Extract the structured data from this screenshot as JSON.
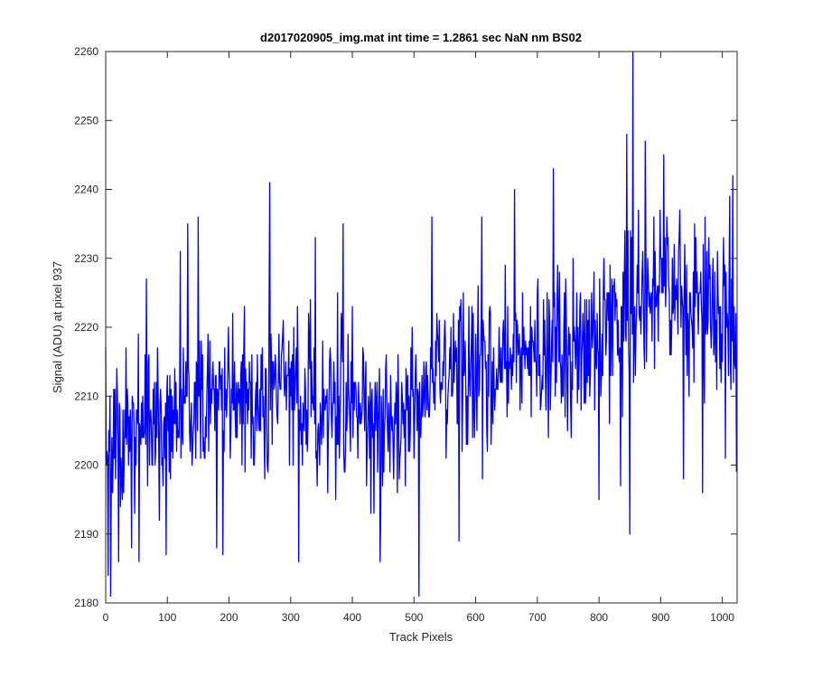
{
  "chart_data": {
    "type": "line",
    "title": "d2017020905_img.mat int time = 1.2861 sec  NaN nm BS02",
    "xlabel": "Track Pixels",
    "ylabel": "Signal (ADU) at pixel 937",
    "xlim": [
      0,
      1024
    ],
    "ylim": [
      2180,
      2260
    ],
    "xticks": [
      0,
      100,
      200,
      300,
      400,
      500,
      600,
      700,
      800,
      900,
      1000
    ],
    "yticks": [
      2180,
      2190,
      2200,
      2210,
      2220,
      2230,
      2240,
      2250,
      2260
    ],
    "grid": false,
    "line_color": "#0000ff",
    "series": [
      {
        "trend_x": [
          0,
          100,
          200,
          300,
          400,
          450,
          500,
          600,
          700,
          800,
          850,
          900,
          1000,
          1023
        ],
        "trend_mean": [
          2203,
          2207,
          2210,
          2211,
          2209,
          2205,
          2209,
          2214,
          2216,
          2219,
          2224,
          2225,
          2223,
          2219
        ],
        "trend_amplitude": 6.5,
        "peaks": [
          {
            "x": 0,
            "y": 2217
          },
          {
            "x": 4,
            "y": 2184
          },
          {
            "x": 8,
            "y": 2181
          },
          {
            "x": 18,
            "y": 2214
          },
          {
            "x": 21,
            "y": 2186
          },
          {
            "x": 33,
            "y": 2217
          },
          {
            "x": 42,
            "y": 2188
          },
          {
            "x": 54,
            "y": 2186
          },
          {
            "x": 66,
            "y": 2227
          },
          {
            "x": 98,
            "y": 2187
          },
          {
            "x": 121,
            "y": 2231
          },
          {
            "x": 133,
            "y": 2235
          },
          {
            "x": 150,
            "y": 2236
          },
          {
            "x": 180,
            "y": 2188
          },
          {
            "x": 190,
            "y": 2187
          },
          {
            "x": 266,
            "y": 2241
          },
          {
            "x": 313,
            "y": 2186
          },
          {
            "x": 340,
            "y": 2233
          },
          {
            "x": 385,
            "y": 2235
          },
          {
            "x": 445,
            "y": 2186
          },
          {
            "x": 508,
            "y": 2181
          },
          {
            "x": 529,
            "y": 2236
          },
          {
            "x": 573,
            "y": 2189
          },
          {
            "x": 610,
            "y": 2236
          },
          {
            "x": 663,
            "y": 2240
          },
          {
            "x": 726,
            "y": 2243
          },
          {
            "x": 800,
            "y": 2195
          },
          {
            "x": 835,
            "y": 2197
          },
          {
            "x": 845,
            "y": 2248
          },
          {
            "x": 850,
            "y": 2190
          },
          {
            "x": 855,
            "y": 2260
          },
          {
            "x": 875,
            "y": 2247
          },
          {
            "x": 905,
            "y": 2245
          },
          {
            "x": 937,
            "y": 2198
          },
          {
            "x": 968,
            "y": 2196
          },
          {
            "x": 1005,
            "y": 2201
          },
          {
            "x": 1012,
            "y": 2239
          },
          {
            "x": 1017,
            "y": 2242
          },
          {
            "x": 1023,
            "y": 2199
          }
        ]
      }
    ]
  }
}
